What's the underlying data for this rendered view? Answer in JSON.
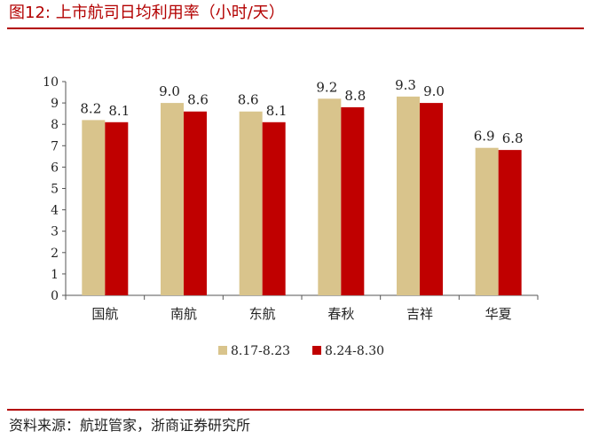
{
  "figure": {
    "title": "图12:  上市航司日均利用率（小时/天）",
    "source": "资料来源：航班管家，浙商证券研究所"
  },
  "colors": {
    "accent": "#b30000",
    "series1": "#d9c48c",
    "series2": "#c00000"
  },
  "chart_data": {
    "type": "bar",
    "categories": [
      "国航",
      "南航",
      "东航",
      "春秋",
      "吉祥",
      "华夏"
    ],
    "series": [
      {
        "name": "8.17-8.23",
        "values": [
          8.2,
          9.0,
          8.6,
          9.2,
          9.3,
          6.9
        ]
      },
      {
        "name": "8.24-8.30",
        "values": [
          8.1,
          8.6,
          8.1,
          8.8,
          9.0,
          6.8
        ]
      }
    ],
    "data_labels": [
      [
        "8.2",
        "9.0",
        "8.6",
        "9.2",
        "9.3",
        "6.9"
      ],
      [
        "8.1",
        "8.6",
        "8.1",
        "8.8",
        "9.0",
        "6.8"
      ]
    ],
    "yticks": [
      "0",
      "1",
      "2",
      "3",
      "4",
      "5",
      "6",
      "7",
      "8",
      "9",
      "10"
    ],
    "ylim": [
      0,
      10
    ],
    "xlabel": "",
    "ylabel": "",
    "grid": false,
    "legend_position": "bottom-center"
  }
}
